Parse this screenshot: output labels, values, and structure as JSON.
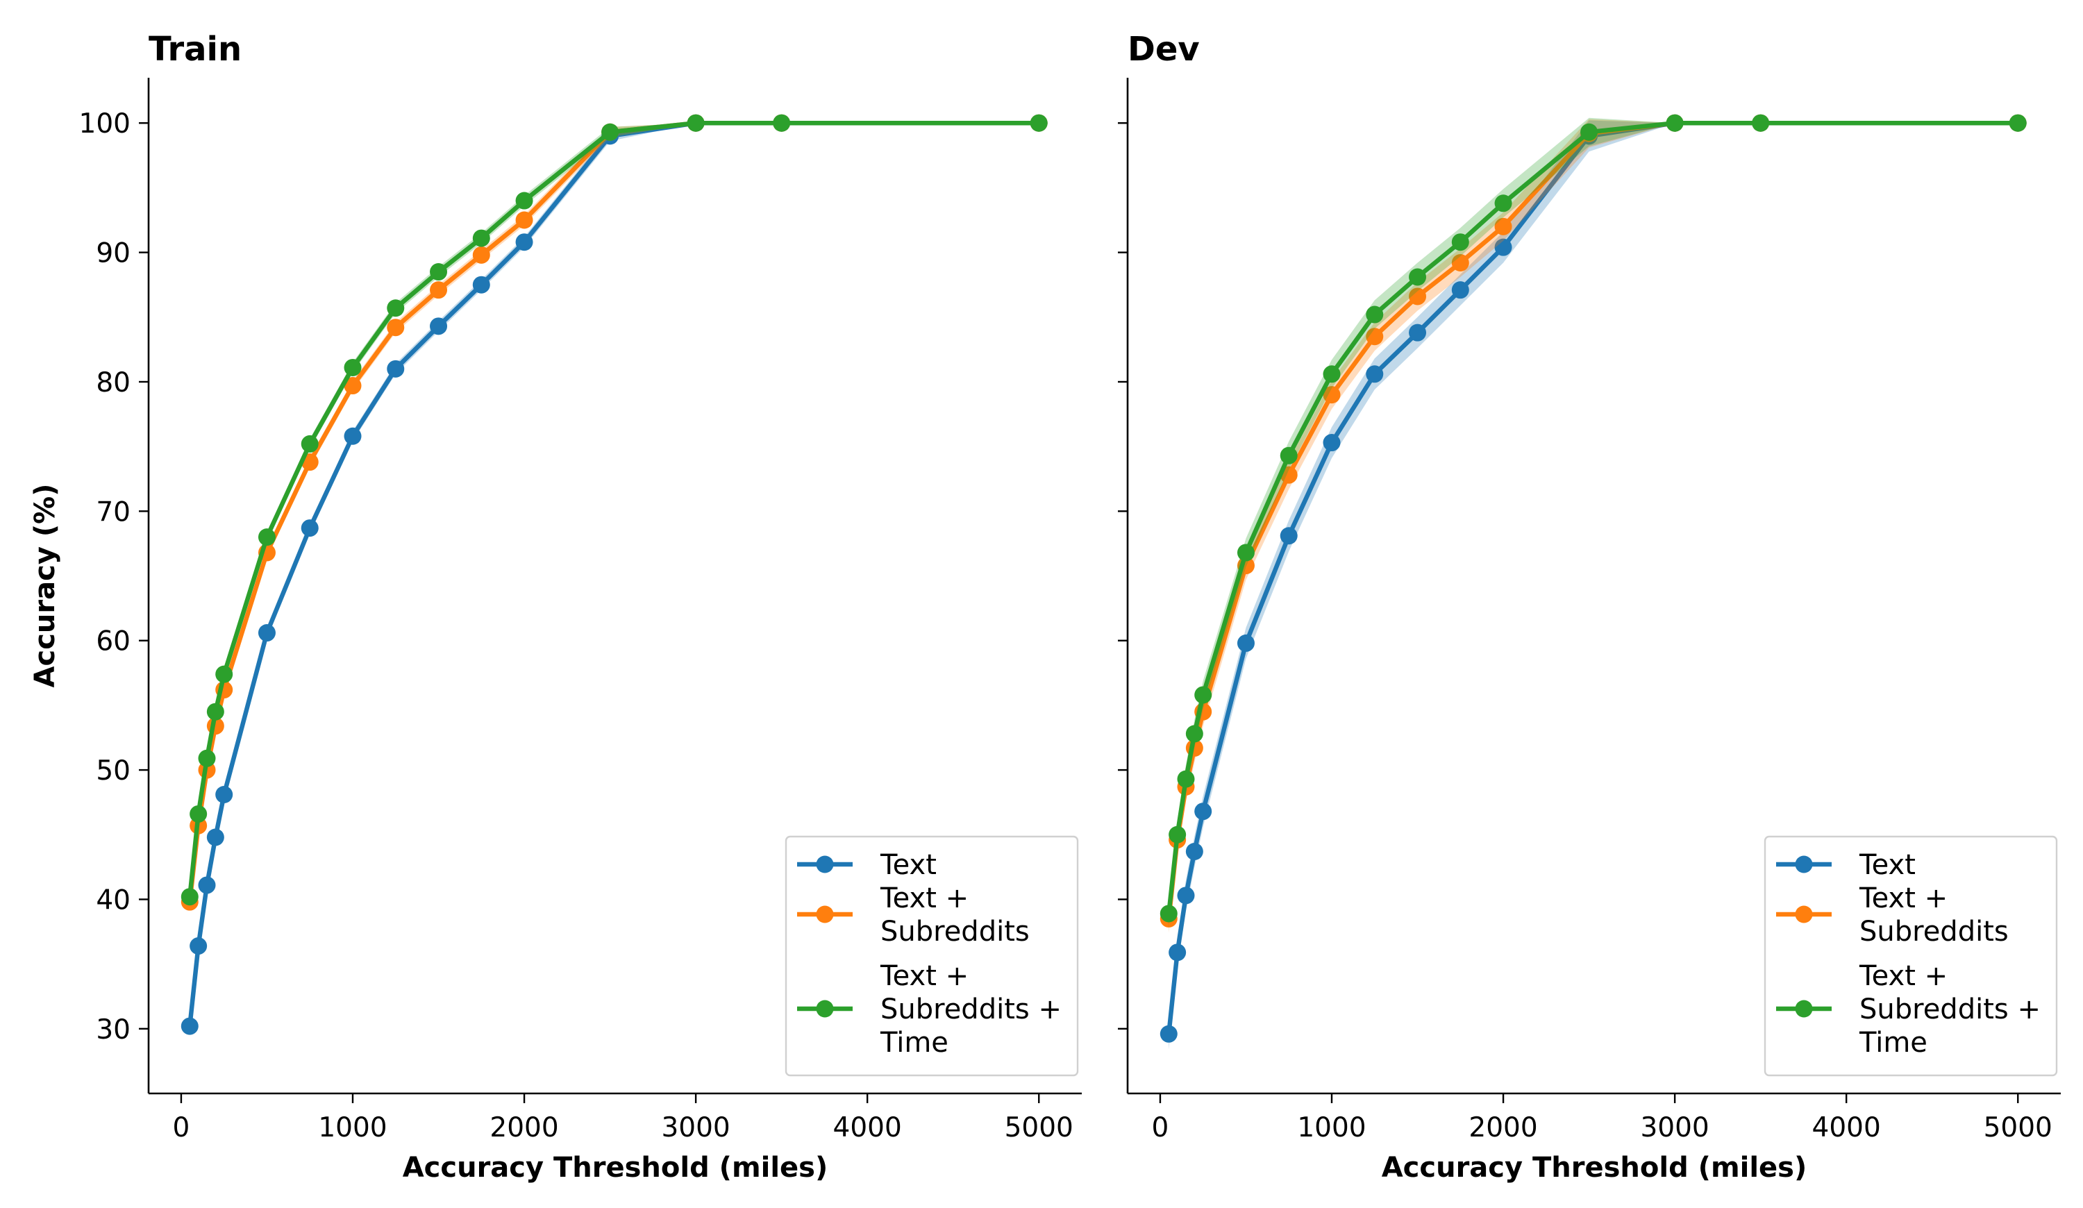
{
  "chart_data": [
    {
      "type": "line",
      "title": "Train",
      "xlabel": "Accuracy Threshold (miles)",
      "ylabel": "Accuracy (%)",
      "xlim": [
        -190,
        5250
      ],
      "ylim": [
        25,
        103.5
      ],
      "xticks": [
        "0",
        "1000",
        "2000",
        "3000",
        "4000",
        "5000"
      ],
      "yticks": [
        "30",
        "40",
        "50",
        "60",
        "70",
        "80",
        "90",
        "100"
      ],
      "legend_position": "lower-right",
      "x": [
        50,
        100,
        150,
        200,
        250,
        500,
        750,
        1000,
        1250,
        1500,
        1750,
        2000,
        2500,
        3000,
        3500,
        5000
      ],
      "series": [
        {
          "name": "Text",
          "color": "#1f77b4",
          "values": [
            30.2,
            36.4,
            41.1,
            44.8,
            48.1,
            60.6,
            68.7,
            75.8,
            81.0,
            84.3,
            87.5,
            90.8,
            99.0,
            100,
            100,
            100
          ],
          "band": 0.4
        },
        {
          "name": "Text +\nSubreddits",
          "color": "#ff7f0e",
          "values": [
            39.8,
            45.7,
            50.0,
            53.4,
            56.2,
            66.8,
            73.8,
            79.7,
            84.2,
            87.1,
            89.8,
            92.5,
            99.3,
            100,
            100,
            100
          ],
          "band": 0.4
        },
        {
          "name": "Text +\nSubreddits +\nTime",
          "color": "#2ca02c",
          "values": [
            40.2,
            46.6,
            50.9,
            54.5,
            57.4,
            68.0,
            75.2,
            81.1,
            85.7,
            88.5,
            91.1,
            94.0,
            99.3,
            100,
            100,
            100
          ],
          "band": 0.4
        }
      ]
    },
    {
      "type": "line",
      "title": "Dev",
      "xlabel": "Accuracy Threshold (miles)",
      "ylabel": "",
      "xlim": [
        -190,
        5250
      ],
      "ylim": [
        25,
        103.5
      ],
      "xticks": [
        "0",
        "1000",
        "2000",
        "3000",
        "4000",
        "5000"
      ],
      "yticks": [],
      "legend_position": "lower-right",
      "x": [
        50,
        100,
        150,
        200,
        250,
        500,
        750,
        1000,
        1250,
        1500,
        1750,
        2000,
        2500,
        3000,
        3500,
        5000
      ],
      "series": [
        {
          "name": "Text",
          "color": "#1f77b4",
          "values": [
            29.6,
            35.9,
            40.3,
            43.7,
            46.8,
            59.8,
            68.1,
            75.3,
            80.6,
            83.8,
            87.1,
            90.4,
            99.0,
            100,
            100,
            100
          ],
          "band": 1.2
        },
        {
          "name": "Text +\nSubreddits",
          "color": "#ff7f0e",
          "values": [
            38.5,
            44.6,
            48.7,
            51.7,
            54.5,
            65.8,
            72.8,
            79.0,
            83.5,
            86.6,
            89.2,
            92.0,
            99.2,
            100,
            100,
            100
          ],
          "band": 1.1
        },
        {
          "name": "Text +\nSubreddits +\nTime",
          "color": "#2ca02c",
          "values": [
            38.9,
            45.0,
            49.3,
            52.8,
            55.8,
            66.8,
            74.3,
            80.6,
            85.2,
            88.1,
            90.8,
            93.8,
            99.3,
            100,
            100,
            100
          ],
          "band": 1.1
        }
      ]
    }
  ]
}
